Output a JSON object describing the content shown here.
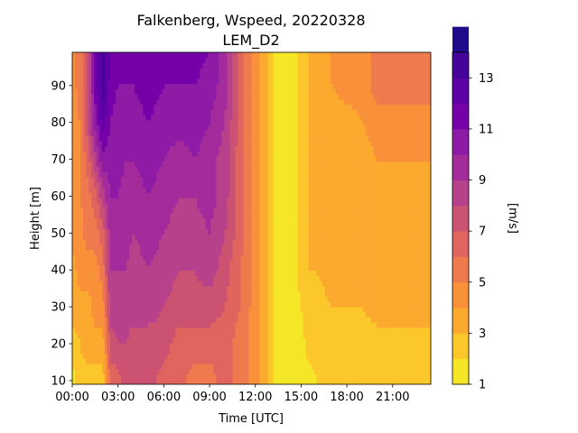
{
  "chart_data": {
    "type": "heatmap",
    "title": "Falkenberg, Wspeed, 20220328",
    "subtitle": "LEM_D2",
    "xlabel": "Time [UTC]",
    "ylabel": "Height [m]",
    "colorbar_label": "[m/s]",
    "colormap": "plasma (reversed)",
    "xlim_hours": [
      0,
      23.5
    ],
    "ylim": [
      9,
      99
    ],
    "x_ticks": [
      {
        "value": 0,
        "label": "00:00"
      },
      {
        "value": 3,
        "label": "03:00"
      },
      {
        "value": 6,
        "label": "06:00"
      },
      {
        "value": 9,
        "label": "09:00"
      },
      {
        "value": 12,
        "label": "12:00"
      },
      {
        "value": 15,
        "label": "15:00"
      },
      {
        "value": 18,
        "label": "18:00"
      },
      {
        "value": 21,
        "label": "21:00"
      }
    ],
    "y_ticks": [
      {
        "value": 10,
        "label": "10"
      },
      {
        "value": 20,
        "label": "20"
      },
      {
        "value": 30,
        "label": "30"
      },
      {
        "value": 40,
        "label": "40"
      },
      {
        "value": 50,
        "label": "50"
      },
      {
        "value": 60,
        "label": "60"
      },
      {
        "value": 70,
        "label": "70"
      },
      {
        "value": 80,
        "label": "80"
      },
      {
        "value": 90,
        "label": "90"
      }
    ],
    "colorbar_ticks": [
      {
        "value": 1,
        "label": "1"
      },
      {
        "value": 3,
        "label": "3"
      },
      {
        "value": 5,
        "label": "5"
      },
      {
        "value": 7,
        "label": "7"
      },
      {
        "value": 9,
        "label": "9"
      },
      {
        "value": 11,
        "label": "11"
      },
      {
        "value": 13,
        "label": "13"
      }
    ],
    "levels": [
      1,
      2,
      3,
      4,
      5,
      6,
      7,
      8,
      9,
      10,
      11,
      12,
      13,
      14
    ],
    "level_colors": [
      "#f5e627",
      "#fcc72a",
      "#fcaa2f",
      "#f9913a",
      "#ef7a4d",
      "#e0655e",
      "#cc5272",
      "#b8418b",
      "#a42b9c",
      "#8e1ba6",
      "#7501a8",
      "#5d02a7",
      "#440399",
      "#200c8b"
    ],
    "heights": [
      10,
      20,
      30,
      40,
      50,
      60,
      70,
      80,
      90,
      99
    ],
    "x_hours": [
      0,
      0.5,
      1,
      1.5,
      2,
      2.5,
      3,
      3.5,
      4,
      5,
      6,
      7,
      8,
      9,
      10,
      11,
      12,
      12.5,
      13,
      13.5,
      14,
      14.5,
      15,
      15.5,
      16,
      17,
      18,
      19,
      20,
      21,
      22,
      23.5
    ],
    "wind_speed": [
      [
        1.5,
        2.5,
        2.5,
        2.5,
        2.5,
        6.5,
        6.5,
        7.5,
        7.5,
        7.5,
        6.5,
        6.5,
        5.5,
        5.5,
        6.5,
        5.5,
        4.5,
        3.5,
        2.5,
        1.5,
        1.5,
        1.5,
        1.5,
        1.5,
        2.0,
        2.5,
        2.5,
        2.0,
        2.0,
        2.0,
        2.0,
        2.5
      ],
      [
        2.5,
        3.0,
        3.5,
        3.5,
        3.5,
        7.5,
        8.0,
        8.0,
        7.5,
        7.5,
        7.5,
        6.5,
        6.5,
        6.5,
        6.5,
        5.5,
        4.5,
        3.5,
        2.5,
        1.5,
        1.5,
        1.5,
        1.5,
        2.5,
        2.5,
        2.5,
        2.5,
        2.5,
        2.5,
        2.5,
        2.5,
        2.5
      ],
      [
        3.5,
        3.5,
        3.5,
        4.5,
        4.5,
        8.5,
        8.5,
        8.5,
        8.5,
        8.5,
        8.0,
        7.5,
        7.5,
        7.5,
        7.0,
        6.0,
        4.5,
        3.5,
        2.5,
        1.5,
        1.5,
        1.5,
        2.0,
        2.5,
        2.5,
        3.0,
        3.0,
        3.0,
        3.5,
        3.5,
        3.5,
        3.5
      ],
      [
        3.5,
        4.5,
        4.5,
        4.5,
        5.5,
        9.0,
        9.0,
        9.0,
        8.5,
        9.0,
        8.5,
        8.0,
        8.0,
        8.5,
        7.5,
        6.0,
        4.5,
        3.5,
        2.5,
        1.5,
        1.5,
        1.5,
        2.5,
        3.0,
        3.0,
        3.5,
        3.5,
        3.5,
        3.5,
        3.5,
        3.5,
        3.5
      ],
      [
        4.5,
        4.5,
        5.5,
        5.5,
        6.5,
        9.5,
        9.5,
        9.5,
        9.0,
        9.5,
        9.0,
        8.5,
        8.5,
        9.0,
        8.0,
        6.5,
        4.5,
        3.5,
        2.5,
        1.5,
        1.5,
        1.5,
        2.5,
        3.0,
        3.0,
        3.5,
        3.5,
        3.5,
        3.5,
        3.5,
        3.5,
        3.5
      ],
      [
        4.5,
        5.0,
        5.5,
        6.5,
        8.5,
        10.0,
        10.0,
        9.5,
        9.5,
        10.0,
        9.5,
        9.0,
        9.0,
        9.5,
        8.5,
        6.5,
        4.5,
        3.5,
        2.5,
        1.5,
        1.5,
        1.5,
        2.5,
        3.0,
        3.0,
        3.5,
        3.5,
        3.5,
        3.5,
        3.5,
        3.5,
        3.5
      ],
      [
        4.5,
        5.0,
        6.5,
        8.5,
        10.5,
        10.5,
        10.5,
        10.0,
        10.0,
        10.5,
        10.0,
        9.5,
        10.0,
        9.5,
        8.5,
        6.5,
        4.5,
        3.5,
        2.5,
        1.5,
        1.5,
        1.5,
        2.5,
        3.0,
        3.0,
        3.5,
        3.5,
        3.5,
        4.0,
        4.0,
        4.0,
        4.0
      ],
      [
        4.5,
        5.0,
        7.5,
        10.5,
        12.5,
        11.0,
        10.5,
        10.5,
        10.5,
        11.0,
        10.5,
        10.5,
        10.5,
        10.0,
        9.0,
        6.5,
        4.5,
        3.5,
        2.5,
        1.5,
        1.5,
        1.5,
        2.5,
        3.0,
        3.0,
        3.5,
        3.5,
        4.0,
        4.5,
        4.5,
        4.5,
        4.5
      ],
      [
        4.5,
        5.5,
        7.5,
        11.5,
        13.5,
        11.5,
        11.0,
        11.0,
        11.0,
        11.5,
        11.0,
        11.0,
        11.0,
        10.5,
        9.5,
        6.5,
        4.5,
        3.5,
        2.5,
        1.5,
        1.5,
        1.5,
        2.5,
        3.0,
        3.5,
        4.0,
        4.5,
        4.5,
        5.5,
        5.5,
        5.5,
        5.5
      ],
      [
        4.5,
        5.5,
        7.5,
        11.5,
        13.5,
        12.0,
        11.5,
        11.5,
        12.0,
        11.5,
        11.5,
        11.5,
        11.5,
        11.0,
        9.5,
        6.5,
        4.5,
        3.5,
        2.5,
        1.5,
        1.5,
        1.5,
        2.5,
        3.0,
        3.5,
        4.0,
        4.5,
        4.5,
        5.5,
        5.5,
        5.5,
        5.5
      ]
    ]
  }
}
